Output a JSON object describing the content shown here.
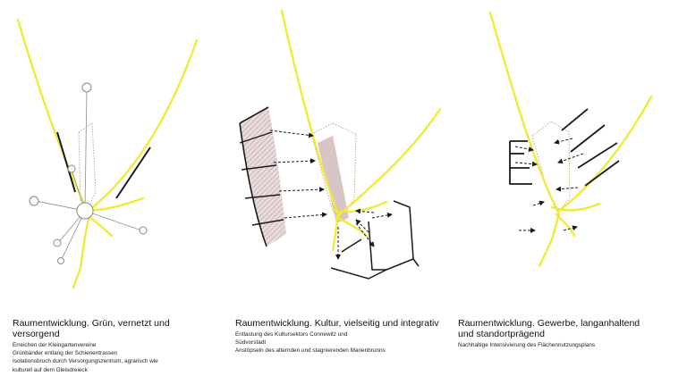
{
  "panels": [
    {
      "title": "Raumentwicklung. Grün, vernetzt und versorgend",
      "lines": [
        "Erreichen der Kleingartenvereine",
        "Grünbänder entlang der Schienentrassen",
        "Isolationsbruch durch Versorgungszentrum, agrarisch wie",
        "kulturell auf dem Gleisdreieck"
      ]
    },
    {
      "title": "Raumentwicklung. Kultur, vielseitig und integrativ",
      "lines": [
        "Entlastung des Kultursektors Connewitz und",
        "Südvorstadt",
        "Anstöpseln des alternden und stagnierenden Marienbrunns"
      ]
    },
    {
      "title": "Raumentwicklung. Gewerbe, langanhaltend und standortprägend",
      "lines": [
        "Nachhaltige Intensivierung des Flächennutzungsplans"
      ]
    }
  ],
  "colors": {
    "rail": "#f2ea3a",
    "hatch": "#c9a9a9",
    "hatch_fill": "#e4d6d6",
    "line": "#1a1a1a",
    "grey": "#9a9a9a",
    "dotted": "#b8aa80"
  }
}
